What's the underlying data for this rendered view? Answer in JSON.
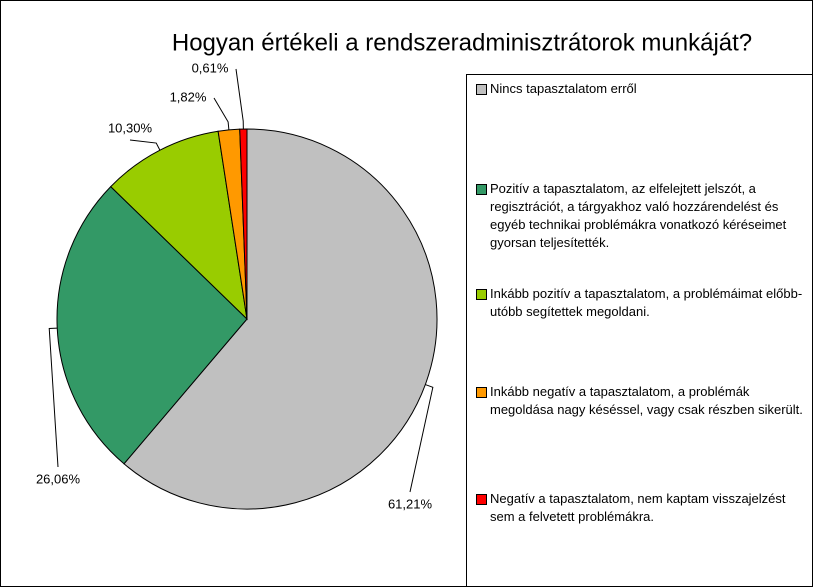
{
  "chart_data": {
    "type": "pie",
    "title": "Hogyan értékeli a rendszeradminisztrátorok munkáját?",
    "categories": [
      "Nincs tapasztalatom erről",
      "Pozitív a tapasztalatom, az elfelejtett jelszót, a regisztrációt, a tárgyakhoz való hozzárendelést és egyéb technikai problémákra vonatkozó kéréseimet gyorsan teljesítették.",
      "Inkább pozitív a tapasztalatom, a problémáimat előbb-utóbb segítettek megoldani.",
      "Inkább negatív a tapasztalatom, a problémák megoldása nagy késéssel, vagy csak részben sikerült.",
      "Negatív a tapasztalatom, nem kaptam visszajelzést sem a felvetett problémákra."
    ],
    "values": [
      61.21,
      26.06,
      10.3,
      1.82,
      0.61
    ],
    "value_labels": [
      "61,21%",
      "26,06%",
      "10,30%",
      "1,82%",
      "0,61%"
    ],
    "colors": [
      "#c0c0c0",
      "#339966",
      "#99cc00",
      "#ff9900",
      "#ff0000"
    ]
  }
}
